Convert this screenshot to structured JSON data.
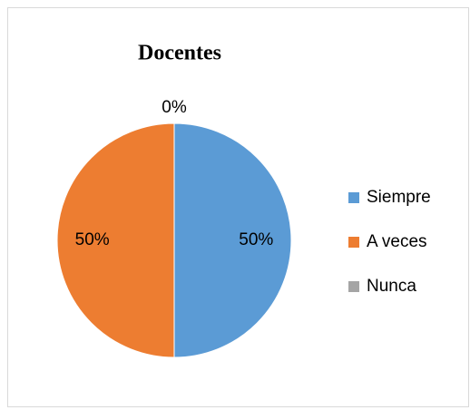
{
  "chart_data": {
    "type": "pie",
    "title": "Docentes",
    "categories": [
      "Siempre",
      "A veces",
      "Nunca"
    ],
    "values": [
      50,
      50,
      0
    ],
    "value_labels": [
      "50%",
      "50%",
      "0%"
    ],
    "colors": [
      "#5b9bd5",
      "#ed7d31",
      "#a5a5a5"
    ],
    "legend": "right"
  }
}
